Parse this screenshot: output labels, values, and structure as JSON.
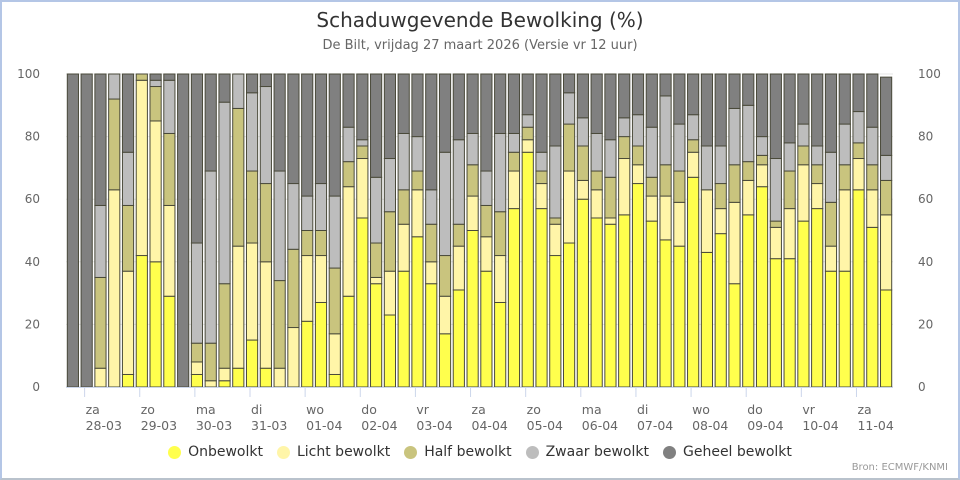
{
  "title": "Schaduwgevende Bewolking (%)",
  "subtitle": "De Bilt, vrijdag 27 maart 2026 (Versie vr 12 uur)",
  "credits": "Bron: ECMWF/KNMI",
  "chart_data": {
    "type": "bar",
    "stacked": true,
    "title": "Schaduwgevende Bewolking (%)",
    "subtitle": "De Bilt, vrijdag 27 maart 2026 (Versie vr 12 uur)",
    "xlabel": "",
    "ylabel": "",
    "ylim": [
      0,
      100
    ],
    "yticks": [
      0,
      20,
      40,
      60,
      80,
      100
    ],
    "y_axis_both_sides": true,
    "grid": true,
    "legend_position": "bottom",
    "bars_per_day": 4,
    "x_ticks": [
      {
        "day": "za",
        "date": "28-03"
      },
      {
        "day": "zo",
        "date": "29-03"
      },
      {
        "day": "ma",
        "date": "30-03"
      },
      {
        "day": "di",
        "date": "31-03"
      },
      {
        "day": "wo",
        "date": "01-04"
      },
      {
        "day": "do",
        "date": "02-04"
      },
      {
        "day": "vr",
        "date": "03-04"
      },
      {
        "day": "za",
        "date": "04-04"
      },
      {
        "day": "zo",
        "date": "05-04"
      },
      {
        "day": "ma",
        "date": "06-04"
      },
      {
        "day": "di",
        "date": "07-04"
      },
      {
        "day": "wo",
        "date": "08-04"
      },
      {
        "day": "do",
        "date": "09-04"
      },
      {
        "day": "vr",
        "date": "10-04"
      },
      {
        "day": "za",
        "date": "11-04"
      }
    ],
    "series": [
      {
        "name": "Onbewolkt",
        "color": "#ffff4d",
        "values": [
          0,
          0,
          0,
          0,
          4,
          42,
          40,
          29,
          0,
          4,
          0,
          2,
          6,
          15,
          6,
          0,
          0,
          21,
          27,
          4,
          29,
          54,
          33,
          23,
          37,
          48,
          33,
          17,
          31,
          50,
          37,
          27,
          57,
          75,
          57,
          42,
          46,
          60,
          54,
          52,
          55,
          65,
          53,
          47,
          45,
          67,
          43,
          49,
          33,
          55,
          64,
          41,
          41,
          53,
          57,
          37,
          37,
          63,
          51,
          31
        ]
      },
      {
        "name": "Licht bewolkt",
        "color": "#fff5a8",
        "values": [
          0,
          0,
          6,
          63,
          33,
          56,
          45,
          29,
          0,
          4,
          2,
          4,
          39,
          31,
          34,
          6,
          19,
          21,
          15,
          13,
          35,
          19,
          2,
          14,
          15,
          15,
          7,
          12,
          14,
          11,
          11,
          15,
          12,
          4,
          8,
          10,
          23,
          6,
          9,
          2,
          18,
          6,
          8,
          14,
          14,
          8,
          20,
          8,
          26,
          11,
          7,
          10,
          16,
          18,
          8,
          8,
          26,
          10,
          12,
          24
        ]
      },
      {
        "name": "Half bewolkt",
        "color": "#c9c47e",
        "values": [
          0,
          0,
          29,
          29,
          21,
          2,
          11,
          23,
          0,
          6,
          12,
          27,
          44,
          23,
          25,
          28,
          25,
          8,
          8,
          21,
          8,
          4,
          11,
          19,
          11,
          6,
          12,
          13,
          7,
          10,
          10,
          14,
          6,
          4,
          4,
          2,
          15,
          11,
          6,
          13,
          7,
          6,
          6,
          10,
          10,
          4,
          0,
          8,
          12,
          6,
          3,
          2,
          12,
          6,
          6,
          14,
          8,
          5,
          8,
          11
        ]
      },
      {
        "name": "Zwaar bewolkt",
        "color": "#bdbdbd",
        "values": [
          0,
          0,
          23,
          8,
          17,
          0,
          2,
          17,
          0,
          32,
          55,
          58,
          11,
          25,
          31,
          35,
          21,
          11,
          15,
          23,
          11,
          2,
          21,
          17,
          18,
          11,
          11,
          33,
          27,
          10,
          11,
          25,
          6,
          4,
          6,
          23,
          10,
          9,
          12,
          12,
          6,
          10,
          16,
          22,
          15,
          8,
          14,
          12,
          18,
          18,
          6,
          20,
          9,
          7,
          6,
          16,
          13,
          10,
          12,
          8
        ]
      },
      {
        "name": "Geheel bewolkt",
        "color": "#808080",
        "values": [
          100,
          100,
          42,
          0,
          25,
          0,
          2,
          2,
          100,
          54,
          31,
          9,
          0,
          6,
          4,
          31,
          35,
          39,
          35,
          39,
          17,
          21,
          33,
          27,
          19,
          20,
          37,
          25,
          21,
          19,
          31,
          19,
          19,
          13,
          25,
          23,
          6,
          14,
          19,
          21,
          14,
          13,
          17,
          7,
          16,
          13,
          23,
          23,
          11,
          10,
          20,
          27,
          22,
          16,
          23,
          25,
          16,
          12,
          17,
          25
        ]
      }
    ]
  }
}
